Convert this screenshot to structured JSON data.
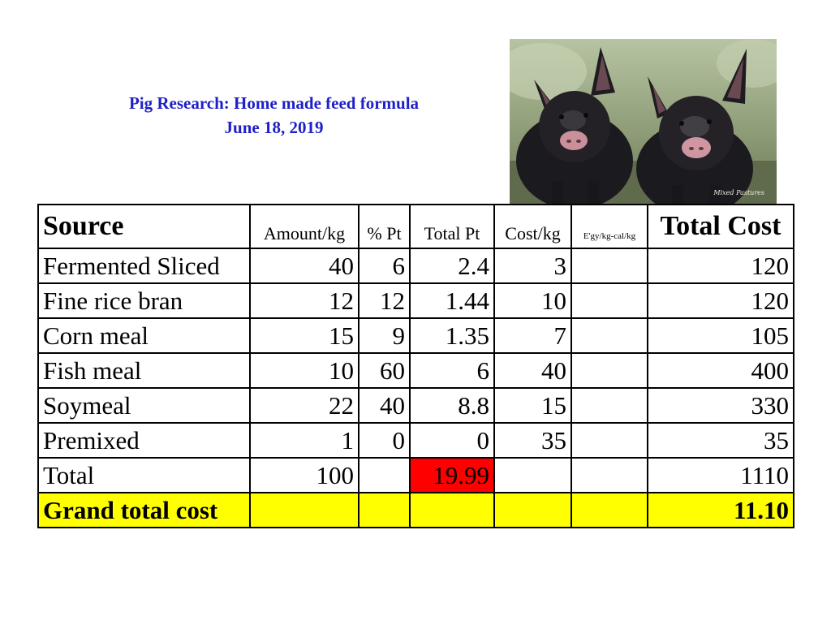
{
  "title": "Pig Research: Home made feed formula",
  "date": "June 18, 2019",
  "photo": {
    "icon": "two-black-piglets-photo",
    "watermark": "Mixed Pastures"
  },
  "table": {
    "headers": [
      "Source",
      "Amount/kg",
      "% Pt",
      "Total Pt",
      "Cost/kg",
      "E'gy/kg-cal/kg",
      "Total Cost"
    ],
    "rows": [
      {
        "source": "Fermented Sliced",
        "amount": "40",
        "pct_pt": "6",
        "total_pt": "2.4",
        "cost_kg": "3",
        "energy": "",
        "total_cost": "120"
      },
      {
        "source": "Fine rice bran",
        "amount": "12",
        "pct_pt": "12",
        "total_pt": "1.44",
        "cost_kg": "10",
        "energy": "",
        "total_cost": "120"
      },
      {
        "source": "Corn meal",
        "amount": "15",
        "pct_pt": "9",
        "total_pt": "1.35",
        "cost_kg": "7",
        "energy": "",
        "total_cost": "105"
      },
      {
        "source": "Fish meal",
        "amount": "10",
        "pct_pt": "60",
        "total_pt": "6",
        "cost_kg": "40",
        "energy": "",
        "total_cost": "400"
      },
      {
        "source": "Soymeal",
        "amount": "22",
        "pct_pt": "40",
        "total_pt": "8.8",
        "cost_kg": "15",
        "energy": "",
        "total_cost": "330"
      },
      {
        "source": "Premixed",
        "amount": "1",
        "pct_pt": "0",
        "total_pt": "0",
        "cost_kg": "35",
        "energy": "",
        "total_cost": "35"
      }
    ],
    "total_row": {
      "label": "Total",
      "amount": "100",
      "total_pt": "19.99",
      "total_cost": "1110"
    },
    "grand_row": {
      "label": "Grand total cost",
      "value": "11.10"
    },
    "highlight_colors": {
      "total_pt": "#ff0000",
      "grand_row": "#ffff00"
    }
  },
  "colors": {
    "title": "#1f1fc8"
  }
}
